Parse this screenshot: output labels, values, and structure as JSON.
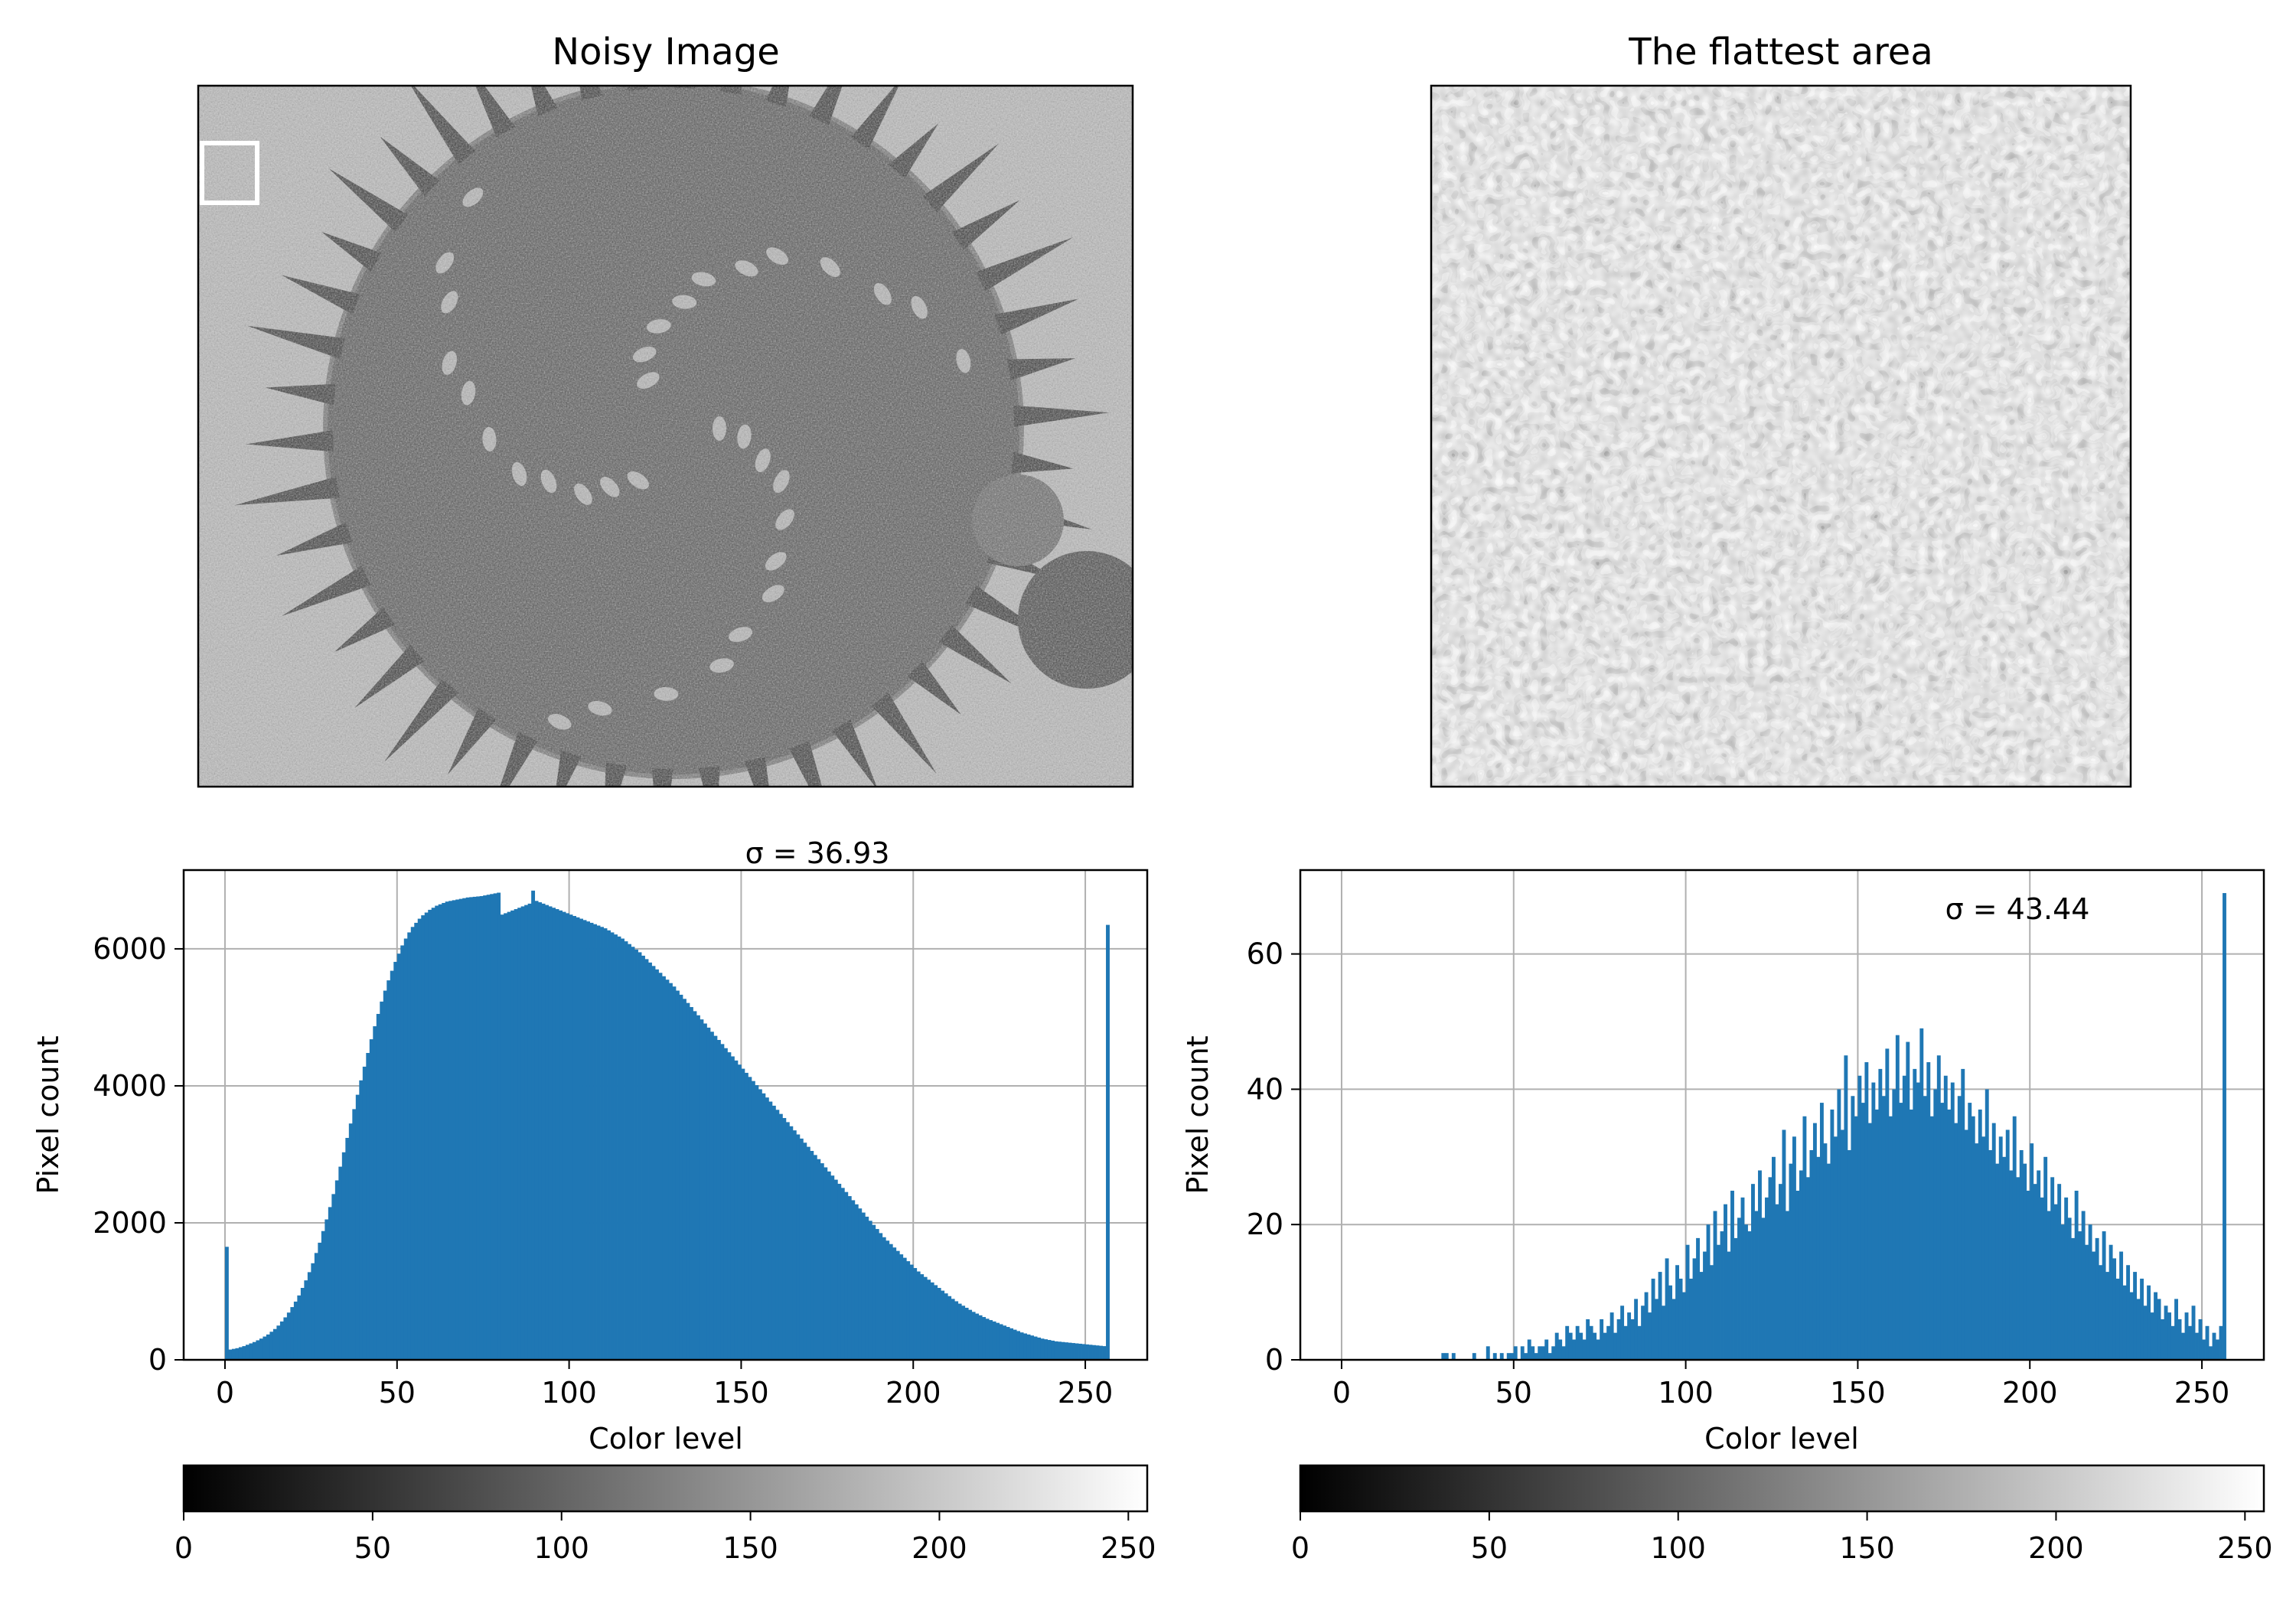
{
  "figure": {
    "images": [
      {
        "title": "Noisy Image"
      },
      {
        "title": "The flattest area"
      }
    ]
  },
  "colors": {
    "bar": "#1f77b4",
    "grid": "#b0b0b0",
    "frame": "#000000",
    "selection_box": "#ffffff"
  },
  "chart_data": [
    {
      "type": "bar",
      "annotation": "σ = 36.93",
      "xlabel": "Color level",
      "ylabel": "Pixel count",
      "xlim": [
        -12,
        268
      ],
      "ylim": [
        0,
        7150
      ],
      "xticks": [
        0,
        50,
        100,
        150,
        200,
        250
      ],
      "yticks": [
        0,
        2000,
        4000,
        6000
      ],
      "grid": true,
      "bins": 256,
      "values": [
        1650,
        150,
        160,
        170,
        185,
        200,
        220,
        240,
        260,
        285,
        310,
        340,
        370,
        410,
        450,
        500,
        560,
        620,
        690,
        770,
        850,
        940,
        1050,
        1160,
        1280,
        1410,
        1560,
        1710,
        1880,
        2050,
        2230,
        2420,
        2620,
        2820,
        3030,
        3240,
        3450,
        3660,
        3870,
        4080,
        4280,
        4480,
        4680,
        4870,
        5050,
        5230,
        5390,
        5540,
        5680,
        5810,
        5930,
        6050,
        6150,
        6240,
        6320,
        6380,
        6440,
        6490,
        6530,
        6570,
        6600,
        6630,
        6650,
        6670,
        6690,
        6700,
        6710,
        6720,
        6730,
        6740,
        6750,
        6755,
        6760,
        6765,
        6770,
        6780,
        6790,
        6800,
        6810,
        6820,
        6500,
        6520,
        6540,
        6560,
        6580,
        6600,
        6620,
        6640,
        6660,
        6850,
        6700,
        6680,
        6660,
        6640,
        6620,
        6600,
        6580,
        6560,
        6540,
        6520,
        6500,
        6480,
        6460,
        6440,
        6420,
        6400,
        6380,
        6360,
        6340,
        6320,
        6300,
        6270,
        6240,
        6210,
        6180,
        6150,
        6110,
        6070,
        6030,
        5990,
        5950,
        5900,
        5850,
        5800,
        5750,
        5700,
        5650,
        5600,
        5550,
        5500,
        5450,
        5390,
        5330,
        5270,
        5210,
        5150,
        5090,
        5030,
        4970,
        4910,
        4850,
        4790,
        4730,
        4670,
        4610,
        4550,
        4490,
        4430,
        4370,
        4310,
        4250,
        4190,
        4130,
        4070,
        4010,
        3950,
        3890,
        3830,
        3770,
        3710,
        3650,
        3590,
        3530,
        3470,
        3410,
        3350,
        3290,
        3230,
        3170,
        3110,
        3050,
        2990,
        2930,
        2870,
        2810,
        2750,
        2690,
        2630,
        2570,
        2510,
        2450,
        2390,
        2330,
        2270,
        2210,
        2150,
        2090,
        2030,
        1970,
        1910,
        1850,
        1790,
        1740,
        1690,
        1640,
        1590,
        1540,
        1490,
        1440,
        1390,
        1340,
        1290,
        1250,
        1210,
        1170,
        1130,
        1090,
        1050,
        1010,
        970,
        930,
        890,
        855,
        820,
        790,
        760,
        730,
        700,
        675,
        650,
        625,
        600,
        580,
        560,
        540,
        520,
        500,
        480,
        460,
        440,
        420,
        400,
        385,
        370,
        355,
        340,
        325,
        310,
        300,
        290,
        280,
        270,
        265,
        260,
        255,
        250,
        245,
        240,
        235,
        230,
        225,
        220,
        215,
        210,
        205,
        200,
        6350
      ],
      "peak_at_255": 6350,
      "sigma": 36.93
    },
    {
      "type": "bar",
      "annotation": "σ = 43.44",
      "xlabel": "Color level",
      "ylabel": "Pixel count",
      "xlim": [
        -12,
        268
      ],
      "ylim": [
        0,
        72.4
      ],
      "xticks": [
        0,
        50,
        100,
        150,
        200,
        250
      ],
      "yticks": [
        0,
        20,
        40,
        60
      ],
      "grid": true,
      "bins": 256,
      "values": [
        0,
        0,
        0,
        0,
        0,
        0,
        0,
        0,
        0,
        0,
        0,
        0,
        0,
        0,
        0,
        0,
        0,
        0,
        0,
        0,
        0,
        0,
        0,
        0,
        0,
        0,
        0,
        0,
        0,
        1,
        1,
        0,
        1,
        0,
        0,
        0,
        0,
        0,
        1,
        0,
        0,
        0,
        2,
        0,
        1,
        0,
        1,
        0,
        1,
        1,
        2,
        0,
        2,
        1,
        3,
        2,
        1,
        2,
        2,
        3,
        1,
        2,
        4,
        3,
        2,
        5,
        4,
        3,
        5,
        4,
        3,
        6,
        5,
        4,
        3,
        6,
        4,
        5,
        7,
        4,
        6,
        8,
        5,
        7,
        6,
        9,
        5,
        8,
        10,
        7,
        12,
        9,
        13,
        8,
        15,
        11,
        9,
        14,
        12,
        10,
        17,
        12,
        15,
        18,
        13,
        16,
        20,
        14,
        22,
        17,
        19,
        23,
        16,
        25,
        18,
        21,
        24,
        20,
        19,
        26,
        22,
        28,
        21,
        24,
        27,
        30,
        23,
        26,
        34,
        22,
        29,
        33,
        25,
        28,
        36,
        27,
        31,
        35,
        30,
        38,
        32,
        29,
        37,
        33,
        40,
        34,
        45,
        31,
        39,
        36,
        42,
        38,
        44,
        35,
        41,
        37,
        43,
        39,
        46,
        36,
        40,
        48,
        38,
        42,
        47,
        37,
        43,
        41,
        49,
        39,
        44,
        36,
        40,
        45,
        38,
        42,
        37,
        41,
        35,
        39,
        43,
        34,
        38,
        36,
        32,
        37,
        33,
        40,
        31,
        35,
        29,
        33,
        30,
        34,
        28,
        36,
        27,
        31,
        29,
        25,
        32,
        26,
        28,
        24,
        30,
        22,
        27,
        23,
        26,
        20,
        24,
        21,
        18,
        25,
        19,
        22,
        17,
        20,
        16,
        18,
        14,
        19,
        13,
        17,
        15,
        12,
        16,
        11,
        14,
        10,
        13,
        9,
        12,
        8,
        11,
        7,
        10,
        9,
        6,
        8,
        7,
        5,
        9,
        6,
        4,
        7,
        5,
        8,
        4,
        6,
        3,
        5,
        2,
        4,
        3,
        5,
        69
      ],
      "peak_at_255": 69,
      "sigma": 43.44
    }
  ],
  "colorbar": {
    "range": [
      0,
      255
    ],
    "ticks": [
      0,
      50,
      100,
      150,
      200,
      250
    ]
  }
}
